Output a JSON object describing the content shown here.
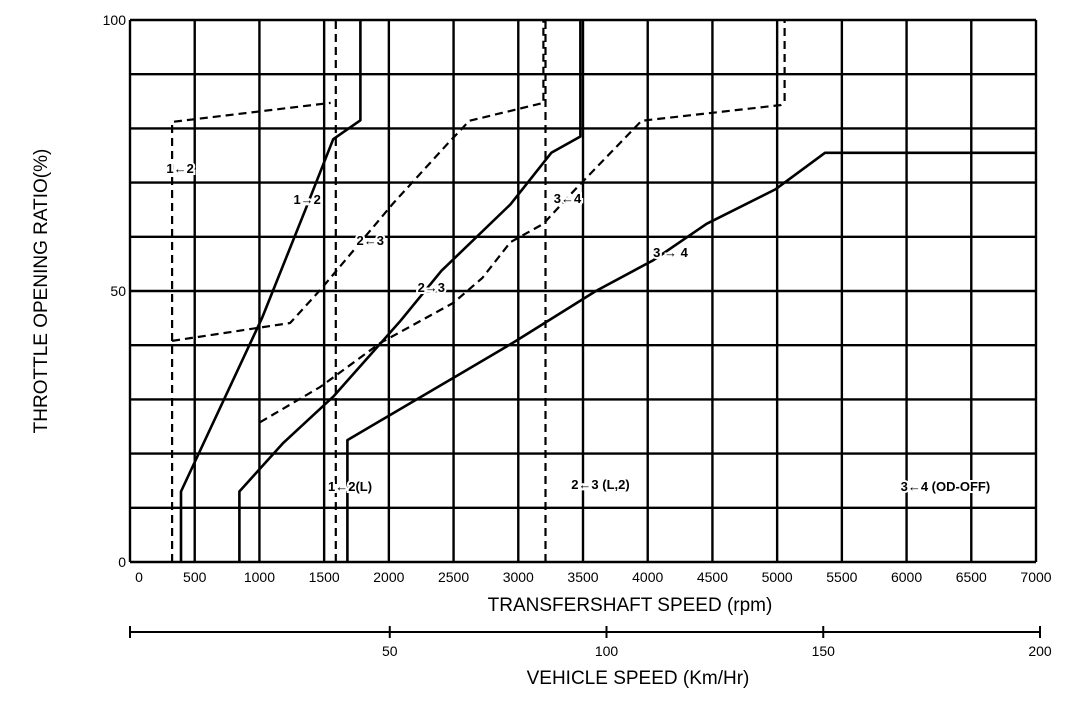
{
  "chart_data": {
    "type": "line",
    "title": "",
    "xlabel": "TRANSFERSHAFT SPEED (rpm)",
    "ylabel": "THROTTLE OPENING RATIO(%)",
    "xlim": [
      0,
      7000
    ],
    "ylim": [
      0,
      100
    ],
    "grid": true,
    "x_ticks": [
      0,
      500,
      1000,
      1500,
      2000,
      2500,
      3000,
      3500,
      4000,
      4500,
      5000,
      5500,
      6000,
      6500,
      7000
    ],
    "y_ticks": [
      0,
      50,
      100
    ],
    "y_grid_step": 10,
    "secondary_axis": {
      "label": "VEHICLE SPEED (Km/Hr)",
      "range": [
        0,
        200
      ],
      "ticks": [
        50,
        100,
        150,
        200
      ]
    },
    "series": [
      {
        "name": "1→2",
        "style": "solid",
        "points": [
          [
            394,
            0
          ],
          [
            394,
            13
          ],
          [
            1020,
            45
          ],
          [
            1355,
            65
          ],
          [
            1570,
            78
          ],
          [
            1780,
            81.5
          ],
          [
            1780,
            100
          ]
        ]
      },
      {
        "name": "2→3",
        "style": "solid",
        "points": [
          [
            845,
            0
          ],
          [
            845,
            13
          ],
          [
            1185,
            22
          ],
          [
            1570,
            30.5
          ],
          [
            2090,
            44.5
          ],
          [
            2405,
            53.7
          ],
          [
            2940,
            66
          ],
          [
            3255,
            75.5
          ],
          [
            3480,
            78.5
          ],
          [
            3480,
            100
          ]
        ]
      },
      {
        "name": "3→4",
        "style": "solid",
        "points": [
          [
            1680,
            0
          ],
          [
            1680,
            22.5
          ],
          [
            2500,
            34
          ],
          [
            2970,
            40.6
          ],
          [
            3600,
            50
          ],
          [
            4045,
            55.7
          ],
          [
            4455,
            62.4
          ],
          [
            4990,
            68.8
          ],
          [
            5370,
            75.5
          ],
          [
            7000,
            75.5
          ]
        ]
      },
      {
        "name": "1←2",
        "style": "dashed",
        "points": [
          [
            325,
            0
          ],
          [
            325,
            81.2
          ],
          [
            1550,
            84.7
          ]
        ]
      },
      {
        "name": "1←2(L)",
        "style": "dashed",
        "points": [
          [
            1590,
            0
          ],
          [
            1590,
            100
          ]
        ]
      },
      {
        "name": "2←3",
        "style": "dashed",
        "points": [
          [
            325,
            40.8
          ],
          [
            1237,
            44.1
          ],
          [
            1470,
            50.2
          ],
          [
            2034,
            66.2
          ],
          [
            2467,
            77.5
          ],
          [
            2622,
            81.4
          ],
          [
            3194,
            84.7
          ],
          [
            3194,
            100
          ]
        ]
      },
      {
        "name": "2←3 (L,2)",
        "style": "dashed",
        "points": [
          [
            3210,
            0
          ],
          [
            3210,
            100
          ]
        ]
      },
      {
        "name": "3←4",
        "style": "dashed",
        "points": [
          [
            1005,
            25.8
          ],
          [
            1470,
            32.3
          ],
          [
            1933,
            40.4
          ],
          [
            2498,
            47.8
          ],
          [
            2722,
            52.4
          ],
          [
            2939,
            59
          ],
          [
            3194,
            62.4
          ],
          [
            3442,
            68.8
          ],
          [
            3952,
            81.4
          ],
          [
            5027,
            84.3
          ],
          [
            5058,
            85
          ],
          [
            5058,
            100
          ]
        ]
      }
    ],
    "annotations": [
      {
        "text": "1←2",
        "at": [
          387,
          72.7
        ]
      },
      {
        "text": "1→2",
        "at": [
          1369,
          67
        ]
      },
      {
        "text": "2←3",
        "at": [
          1856,
          59.4
        ]
      },
      {
        "text": "2→3",
        "at": [
          2328,
          50.7
        ]
      },
      {
        "text": "3←4",
        "at": [
          3380,
          67.2
        ]
      },
      {
        "text": "3 → 4",
        "at": [
          4176,
          57.2
        ]
      },
      {
        "text": "1←2(L)",
        "at": [
          1700,
          14
        ]
      },
      {
        "text": "2←3 (L,2)",
        "at": [
          3635,
          14.4
        ]
      },
      {
        "text": "3←4 (OD-OFF)",
        "at": [
          6300,
          14
        ]
      }
    ]
  }
}
